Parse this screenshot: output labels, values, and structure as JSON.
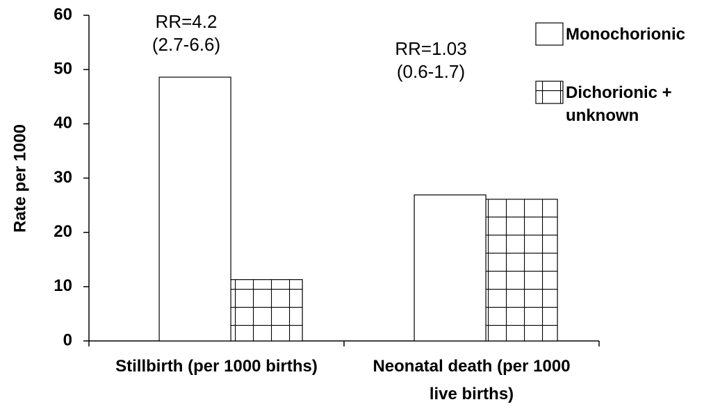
{
  "chart_data": {
    "type": "bar",
    "y_label": "Rate per 1000",
    "categories": [
      "Stillbirth (per 1000 births)",
      "Neonatal death (per 1000 live births)"
    ],
    "series": [
      {
        "name": "Monochorionic",
        "color": "#ffffff",
        "values": [
          48.6,
          26.9
        ]
      },
      {
        "name": "Dichorionic + unknown",
        "color": "#ffffff",
        "hatch": "grid",
        "values": [
          11.3,
          26.1
        ]
      }
    ],
    "annotations": [
      [
        "RR=4.2",
        "(2.7-6.6)"
      ],
      [
        "RR=1.03",
        "(0.6-1.7)"
      ]
    ],
    "ylim": [
      0,
      60
    ],
    "yticks": [
      0,
      10,
      20,
      30,
      40,
      50,
      60
    ],
    "legend": "upper right"
  }
}
